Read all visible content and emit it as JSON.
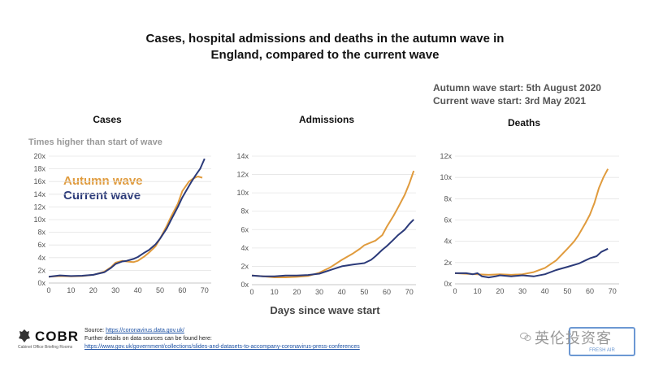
{
  "title_line1": "Cases, hospital admissions and deaths in the autumn wave in",
  "title_line2": "England, compared to the current wave",
  "autumn_start": "Autumn wave start: 5th August 2020",
  "current_start": "Current wave start: 3rd May 2021",
  "y_unit_label": "Times higher than start of wave",
  "x_axis_label": "Days since wave start",
  "legend": {
    "autumn": "Autumn wave",
    "current": "Current wave"
  },
  "colors": {
    "autumn": "#e09b3d",
    "current": "#2b3a79"
  },
  "sources": {
    "source_prefix": "Source: ",
    "source_link": "https://coronavirus.data.gov.uk/",
    "further": "Further details on data sources can be found here:",
    "further_link": "https://www.gov.uk/government/collections/slides-and-datasets-to-accompany-coronavirus-press-conferences"
  },
  "logo": {
    "name": "COBR",
    "subtitle": "Cabinet Office Briefing Rooms"
  },
  "watermark": {
    "text": "英伦投资客",
    "badge": "FRESH AIR"
  },
  "chart_data": [
    {
      "type": "line",
      "title": "Cases",
      "x_ticks": [
        0,
        10,
        20,
        30,
        40,
        50,
        60,
        70
      ],
      "y_ticks": [
        "0x",
        "2x",
        "4x",
        "6x",
        "8x",
        "10x",
        "12x",
        "14x",
        "16x",
        "18x",
        "20x"
      ],
      "xlim": [
        0,
        73
      ],
      "ylim": [
        0,
        20
      ],
      "series": [
        {
          "name": "Autumn wave",
          "x": [
            0,
            5,
            10,
            15,
            20,
            25,
            28,
            30,
            33,
            35,
            38,
            40,
            43,
            45,
            48,
            50,
            53,
            55,
            58,
            60,
            62,
            63,
            65,
            67,
            69
          ],
          "y": [
            1,
            1.1,
            1.05,
            1.1,
            1.3,
            1.8,
            2.5,
            3.2,
            3.5,
            3.4,
            3.3,
            3.5,
            4.2,
            4.8,
            5.8,
            7,
            9,
            10.5,
            12.5,
            14.5,
            15.5,
            16,
            16.5,
            16.8,
            16.6
          ]
        },
        {
          "name": "Current wave",
          "x": [
            0,
            5,
            10,
            15,
            20,
            25,
            28,
            30,
            33,
            35,
            38,
            40,
            43,
            45,
            48,
            50,
            53,
            55,
            58,
            60,
            62,
            64,
            66,
            68,
            70
          ],
          "y": [
            1,
            1.2,
            1.1,
            1.15,
            1.3,
            1.7,
            2.4,
            3,
            3.4,
            3.5,
            3.8,
            4.1,
            4.8,
            5.2,
            6.1,
            7,
            8.6,
            10,
            12,
            13.5,
            14.7,
            15.9,
            17,
            18,
            19.6
          ]
        }
      ]
    },
    {
      "type": "line",
      "title": "Admissions",
      "x_ticks": [
        0,
        10,
        20,
        30,
        40,
        50,
        60,
        70
      ],
      "y_ticks": [
        "0x",
        "2x",
        "4x",
        "6x",
        "8x",
        "10x",
        "12x",
        "14x"
      ],
      "xlim": [
        0,
        73
      ],
      "ylim": [
        0,
        14
      ],
      "series": [
        {
          "name": "Autumn wave",
          "x": [
            0,
            5,
            10,
            15,
            20,
            25,
            30,
            35,
            40,
            45,
            48,
            50,
            53,
            55,
            58,
            60,
            63,
            65,
            68,
            70,
            72
          ],
          "y": [
            1,
            0.9,
            0.8,
            0.8,
            0.85,
            0.95,
            1.3,
            1.9,
            2.7,
            3.4,
            3.9,
            4.3,
            4.6,
            4.8,
            5.4,
            6.3,
            7.5,
            8.4,
            9.8,
            11,
            12.4
          ]
        },
        {
          "name": "Current wave",
          "x": [
            0,
            5,
            10,
            15,
            20,
            25,
            30,
            35,
            40,
            45,
            50,
            53,
            55,
            58,
            60,
            63,
            65,
            68,
            70,
            72
          ],
          "y": [
            1,
            0.9,
            0.9,
            1,
            1,
            1.05,
            1.2,
            1.6,
            2,
            2.2,
            2.35,
            2.7,
            3.1,
            3.8,
            4.2,
            4.9,
            5.4,
            6,
            6.6,
            7.1
          ]
        }
      ]
    },
    {
      "type": "line",
      "title": "Deaths",
      "x_ticks": [
        0,
        10,
        20,
        30,
        40,
        50,
        60,
        70
      ],
      "y_ticks": [
        "0x",
        "2x",
        "4x",
        "6x",
        "8x",
        "10x",
        "12x"
      ],
      "xlim": [
        0,
        73
      ],
      "ylim": [
        0,
        12
      ],
      "series": [
        {
          "name": "Autumn wave",
          "x": [
            0,
            5,
            10,
            15,
            20,
            25,
            30,
            35,
            40,
            45,
            50,
            53,
            55,
            58,
            60,
            62,
            64,
            66,
            68
          ],
          "y": [
            1,
            0.95,
            0.9,
            0.85,
            0.9,
            0.85,
            0.9,
            1.1,
            1.5,
            2.2,
            3.3,
            4,
            4.6,
            5.7,
            6.5,
            7.6,
            9,
            10,
            10.8
          ]
        },
        {
          "name": "Current wave",
          "x": [
            0,
            5,
            8,
            10,
            12,
            15,
            18,
            20,
            25,
            30,
            35,
            40,
            45,
            50,
            55,
            58,
            60,
            63,
            65,
            68
          ],
          "y": [
            1,
            1,
            0.9,
            1,
            0.7,
            0.6,
            0.7,
            0.8,
            0.7,
            0.8,
            0.7,
            0.9,
            1.3,
            1.6,
            1.9,
            2.2,
            2.4,
            2.6,
            3,
            3.3
          ]
        }
      ]
    }
  ]
}
